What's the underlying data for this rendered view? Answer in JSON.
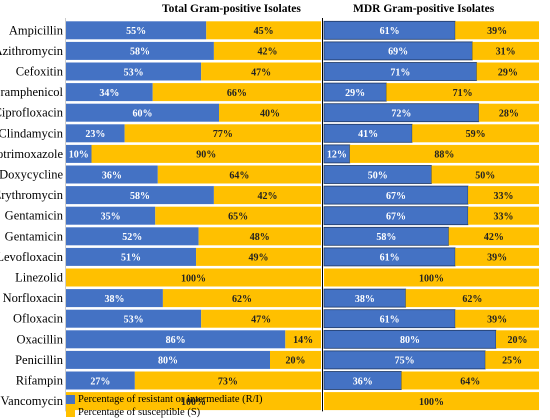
{
  "chart_data": {
    "type": "bar",
    "stacked": true,
    "orientation": "horizontal",
    "categories": [
      "Ampicillin",
      "Azithromycin",
      "Cefoxitin",
      "Chloramphenicol",
      "Ciprofloxacin",
      "Clindamycin",
      "Cotrimoxazole",
      "Doxycycline",
      "Erythromycin",
      "Gentamicin",
      "Gentamicin",
      "Levofloxacin",
      "Linezolid",
      "Norfloxacin",
      "Ofloxacin",
      "Oxacillin",
      "Penicillin",
      "Rifampin",
      "Vancomycin"
    ],
    "panels": [
      {
        "title": "Total Gram-positive Isolates",
        "series": [
          {
            "name": "Percentage of resistant or intermediate (R/I)",
            "values": [
              55,
              58,
              53,
              34,
              60,
              23,
              10,
              36,
              58,
              35,
              52,
              51,
              0,
              38,
              53,
              86,
              80,
              27,
              0
            ],
            "labels": [
              "55%",
              "58%",
              "53%",
              "34%",
              "60%",
              "23%",
              "10%",
              "36%",
              "58%",
              "35%",
              "52%",
              "51%",
              "",
              "38%",
              "53%",
              "86%",
              "80%",
              "27%",
              ""
            ]
          },
          {
            "name": "Percentage of susceptible (S)",
            "values": [
              45,
              42,
              47,
              66,
              40,
              77,
              90,
              64,
              42,
              65,
              48,
              49,
              100,
              62,
              47,
              14,
              20,
              73,
              100
            ],
            "labels": [
              "45%",
              "42%",
              "47%",
              "66%",
              "40%",
              "77%",
              "90%",
              "64%",
              "42%",
              "65%",
              "48%",
              "49%",
              "100%",
              "62%",
              "47%",
              "14%",
              "20%",
              "73%",
              "100%"
            ]
          }
        ]
      },
      {
        "title": "MDR Gram-positive Isolates",
        "series": [
          {
            "name": "Percentage of resistant or intermediate (R/I)",
            "values": [
              61,
              69,
              71,
              29,
              72,
              41,
              12,
              50,
              67,
              67,
              58,
              61,
              0,
              38,
              61,
              80,
              75,
              36,
              0
            ],
            "labels": [
              "61%",
              "69%",
              "71%",
              "29%",
              "72%",
              "41%",
              "12%",
              "50%",
              "67%",
              "67%",
              "58%",
              "61%",
              "",
              "38%",
              "61%",
              "80%",
              "75%",
              "36%",
              ""
            ]
          },
          {
            "name": "Percentage of susceptible (S)",
            "values": [
              39,
              31,
              29,
              71,
              28,
              59,
              88,
              50,
              33,
              33,
              42,
              39,
              100,
              62,
              39,
              20,
              25,
              64,
              100
            ],
            "labels": [
              "39%",
              "31%",
              "29%",
              "71%",
              "28%",
              "59%",
              "88%",
              "50%",
              "33%",
              "33%",
              "42%",
              "39%",
              "100%",
              "62%",
              "39%",
              "20%",
              "25%",
              "64%",
              "100%"
            ]
          }
        ]
      }
    ],
    "xlim": [
      0,
      100
    ],
    "legend": {
      "placement": "bottom-left",
      "items": [
        {
          "label": "Percentage of resistant or intermediate (R/I)",
          "color": "#4472C4"
        },
        {
          "label": "Percentage of susceptible (S)",
          "color": "#FFC000"
        }
      ]
    },
    "colors": {
      "resistant": "#4472C4",
      "susceptible": "#FFC000",
      "edge": "#1F3864"
    }
  }
}
